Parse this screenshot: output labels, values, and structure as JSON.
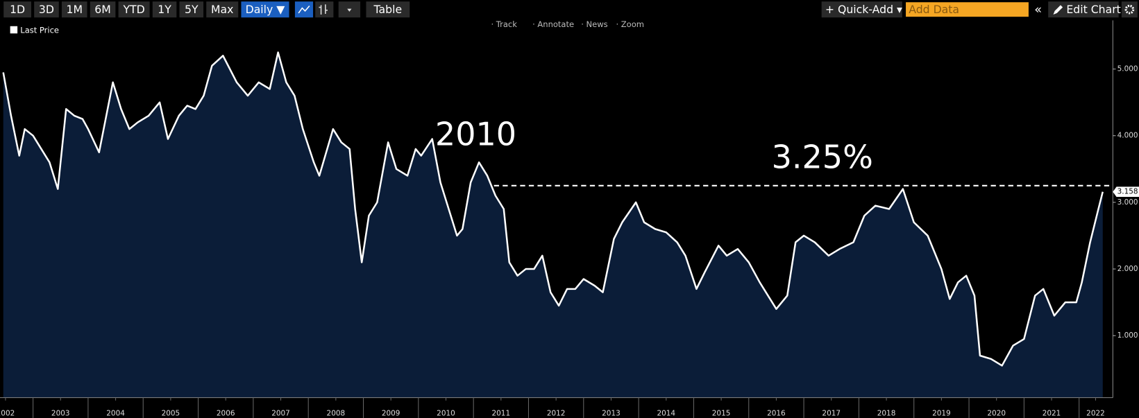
{
  "toolbar": {
    "ranges": [
      "1D",
      "3D",
      "1M",
      "6M",
      "YTD",
      "1Y",
      "5Y",
      "Max"
    ],
    "frequency": "Daily ▼",
    "table": "Table",
    "quick_add": "Quick-Add",
    "add_data": "Add Data",
    "edit_chart": "Edit Chart"
  },
  "chart_tools": [
    "Track",
    "Annotate",
    "News",
    "Zoom"
  ],
  "chart_data": {
    "type": "line",
    "area": true,
    "grid": false,
    "legend": "top-left",
    "background": "#000000",
    "x": [
      2002.46,
      2002.6,
      2002.75,
      2002.85,
      2003.0,
      2003.3,
      2003.45,
      2003.6,
      2003.75,
      2003.9,
      2004.0,
      2004.2,
      2004.45,
      2004.6,
      2004.75,
      2004.9,
      2005.1,
      2005.3,
      2005.45,
      2005.65,
      2005.8,
      2005.95,
      2006.1,
      2006.25,
      2006.45,
      2006.7,
      2006.9,
      2007.1,
      2007.3,
      2007.45,
      2007.6,
      2007.75,
      2007.9,
      2008.1,
      2008.2,
      2008.45,
      2008.6,
      2008.75,
      2008.85,
      2008.97,
      2009.1,
      2009.25,
      2009.45,
      2009.6,
      2009.8,
      2009.95,
      2010.05,
      2010.25,
      2010.4,
      2010.55,
      2010.7,
      2010.8,
      2010.95,
      2011.1,
      2011.25,
      2011.4,
      2011.55,
      2011.65,
      2011.8,
      2011.95,
      2012.1,
      2012.25,
      2012.4,
      2012.55,
      2012.7,
      2012.85,
      2013.0,
      2013.2,
      2013.35,
      2013.55,
      2013.7,
      2013.95,
      2014.1,
      2014.3,
      2014.5,
      2014.7,
      2014.85,
      2015.05,
      2015.2,
      2015.45,
      2015.6,
      2015.8,
      2016.0,
      2016.2,
      2016.5,
      2016.7,
      2016.85,
      2017.0,
      2017.2,
      2017.45,
      2017.65,
      2017.9,
      2018.1,
      2018.3,
      2018.55,
      2018.8,
      2019.0,
      2019.25,
      2019.5,
      2019.65,
      2019.8,
      2019.95,
      2020.1,
      2020.2,
      2020.4,
      2020.6,
      2020.8,
      2021.0,
      2021.2,
      2021.35,
      2021.55,
      2021.75,
      2021.95,
      2022.05,
      2022.2,
      2022.35,
      2022.43
    ],
    "series": [
      {
        "name": "Last Price",
        "color": "#ffffff",
        "fill": "#0b1d38",
        "values": [
          4.95,
          4.3,
          3.7,
          4.1,
          4.0,
          3.6,
          3.2,
          4.4,
          4.3,
          4.25,
          4.1,
          3.75,
          4.8,
          4.4,
          4.1,
          4.2,
          4.3,
          4.5,
          3.95,
          4.3,
          4.45,
          4.4,
          4.6,
          5.05,
          5.2,
          4.8,
          4.6,
          4.8,
          4.7,
          5.25,
          4.8,
          4.6,
          4.1,
          3.6,
          3.4,
          4.1,
          3.9,
          3.8,
          2.9,
          2.1,
          2.8,
          3.0,
          3.9,
          3.5,
          3.4,
          3.8,
          3.7,
          3.95,
          3.3,
          2.9,
          2.5,
          2.6,
          3.3,
          3.6,
          3.4,
          3.1,
          2.9,
          2.1,
          1.9,
          2.0,
          2.0,
          2.2,
          1.65,
          1.45,
          1.7,
          1.7,
          1.85,
          1.75,
          1.65,
          2.45,
          2.7,
          3.0,
          2.7,
          2.6,
          2.55,
          2.4,
          2.2,
          1.7,
          1.95,
          2.35,
          2.2,
          2.3,
          2.1,
          1.8,
          1.4,
          1.6,
          2.4,
          2.5,
          2.4,
          2.2,
          2.3,
          2.4,
          2.8,
          2.95,
          2.9,
          3.2,
          2.7,
          2.5,
          2.0,
          1.55,
          1.8,
          1.9,
          1.6,
          0.7,
          0.65,
          0.55,
          0.85,
          0.95,
          1.6,
          1.7,
          1.3,
          1.5,
          1.5,
          1.8,
          2.4,
          2.9,
          3.158
        ],
        "value_labels": {
          "116": "3.158"
        }
      }
    ],
    "annotations": [
      "2010"
    ],
    "hline": {
      "value": 3.25,
      "label": "3.25%",
      "color": "#ffffff"
    },
    "xlim": [
      2002.4,
      2022.6
    ],
    "xticks": [
      {
        "value": 2002.5,
        "label": "2002"
      },
      {
        "value": 2003.5,
        "label": "2003"
      },
      {
        "value": 2004.5,
        "label": "2004"
      },
      {
        "value": 2005.5,
        "label": "2005"
      },
      {
        "value": 2006.5,
        "label": "2006"
      },
      {
        "value": 2007.5,
        "label": "2007"
      },
      {
        "value": 2008.5,
        "label": "2008"
      },
      {
        "value": 2009.5,
        "label": "2009"
      },
      {
        "value": 2010.5,
        "label": "2010"
      },
      {
        "value": 2011.5,
        "label": "2011"
      },
      {
        "value": 2012.5,
        "label": "2012"
      },
      {
        "value": 2013.5,
        "label": "2013"
      },
      {
        "value": 2014.5,
        "label": "2014"
      },
      {
        "value": 2015.5,
        "label": "2015"
      },
      {
        "value": 2016.5,
        "label": "2016"
      },
      {
        "value": 2017.5,
        "label": "2017"
      },
      {
        "value": 2018.5,
        "label": "2018"
      },
      {
        "value": 2019.5,
        "label": "2019"
      },
      {
        "value": 2020.5,
        "label": "2020"
      },
      {
        "value": 2021.5,
        "label": "2021"
      },
      {
        "value": 2022.3,
        "label": "2022"
      }
    ],
    "ylim": [
      0.07,
      5.73
    ],
    "yticks": [
      {
        "value": 1,
        "label": "1.000"
      },
      {
        "value": 2,
        "label": "2.000"
      },
      {
        "value": 3,
        "label": "3.000"
      },
      {
        "value": 4,
        "label": "4.000"
      },
      {
        "value": 5,
        "label": "5.000"
      }
    ]
  }
}
